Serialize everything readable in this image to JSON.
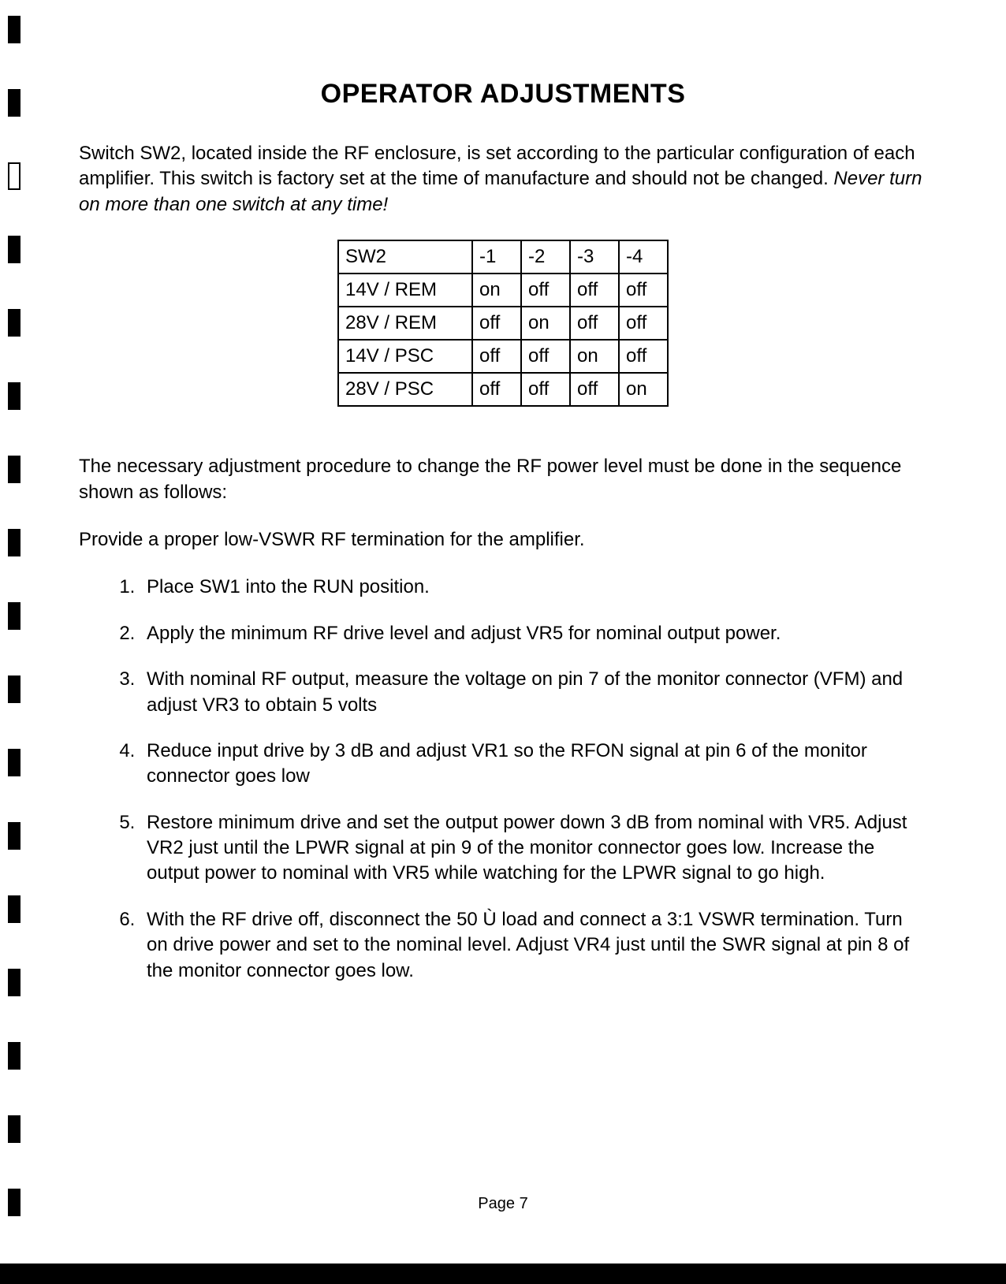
{
  "title": "OPERATOR ADJUSTMENTS",
  "intro_part1": "Switch SW2, located inside the RF enclosure, is set according to the particular configuration of each amplifier. This switch is factory set at the time of manufacture and should not be changed. ",
  "intro_italic": "Never turn on more than one switch at any time!",
  "table": {
    "header": [
      "SW2",
      "-1",
      "-2",
      "-3",
      "-4"
    ],
    "rows": [
      [
        "14V / REM",
        "on",
        "off",
        "off",
        "off"
      ],
      [
        "28V / REM",
        "off",
        "on",
        "off",
        "off"
      ],
      [
        "14V / PSC",
        "off",
        "off",
        "on",
        "off"
      ],
      [
        "28V / PSC",
        "off",
        "off",
        "off",
        "on"
      ]
    ],
    "border_color": "#000000",
    "cell_fontsize": 24
  },
  "para2": "The necessary adjustment procedure to change the RF power level must be done in the sequence shown as follows:",
  "para3": "Provide a proper low-VSWR RF termination for the amplifier.",
  "steps": [
    "Place SW1 into the RUN position.",
    "Apply the minimum RF drive level and adjust VR5 for nominal output power.",
    "With nominal RF output, measure the voltage on pin 7 of the monitor connector (VFM) and adjust VR3 to obtain 5 volts",
    "Reduce input drive by 3 dB and adjust VR1 so the RFON signal at pin 6 of the monitor connector goes low",
    "Restore minimum drive and set the output power down 3 dB from nominal with VR5. Adjust VR2 just until the LPWR signal at pin 9 of the monitor connector goes low. Increase the output power to nominal with VR5 while watching for the LPWR signal to go high.",
    "With the RF drive off, disconnect the 50 Ù load and connect a 3:1 VSWR termination. Turn on drive power and set to the nominal level. Adjust VR4 just until the SWR signal at pin 8 of the monitor connector goes low."
  ],
  "page_number": "Page 7",
  "colors": {
    "text": "#000000",
    "background": "#ffffff"
  }
}
